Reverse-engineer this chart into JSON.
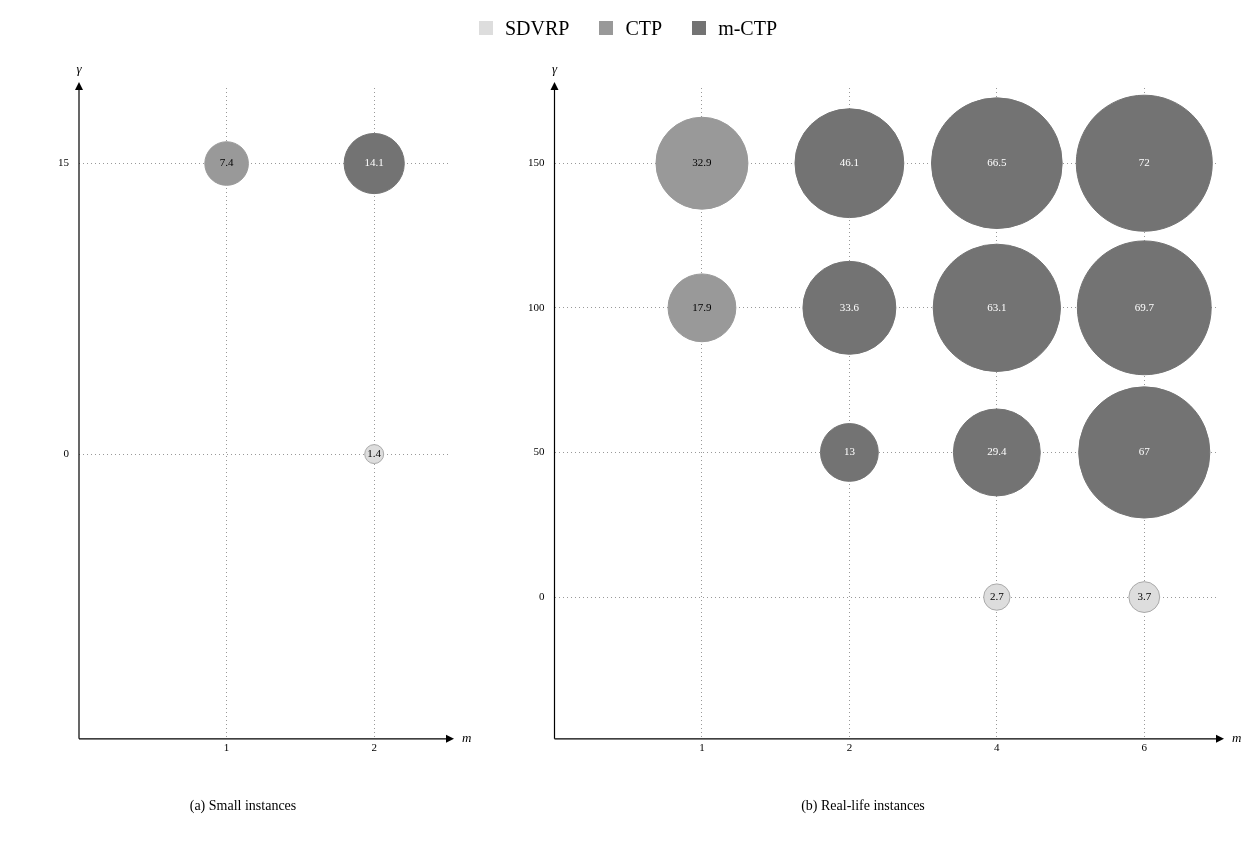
{
  "chart_data": [
    {
      "type": "bubble",
      "title": "(a) Small instances",
      "xlabel": "m",
      "ylabel": "γ",
      "categories": [
        "1",
        "2"
      ],
      "ylim": [
        -14.7,
        18.9
      ],
      "yticks": [
        0,
        15
      ],
      "grid": true,
      "legend": "top",
      "series": [
        {
          "name": "SDVRP",
          "color": "#dddddd",
          "x": [
            "2"
          ],
          "values": [
            0
          ],
          "sizes": [
            1.4
          ],
          "value_labels": [
            "1.4"
          ]
        },
        {
          "name": "CTP",
          "color": "#999999",
          "x": [
            "1"
          ],
          "values": [
            15
          ],
          "sizes": [
            7.4
          ],
          "value_labels": [
            "7.4"
          ]
        },
        {
          "name": "m-CTP",
          "color": "#737373",
          "x": [
            "2"
          ],
          "values": [
            15
          ],
          "sizes": [
            14.1
          ],
          "value_labels": [
            "14.1"
          ]
        }
      ]
    },
    {
      "type": "bubble",
      "title": "(b) Real-life instances",
      "xlabel": "m",
      "ylabel": "γ",
      "categories": [
        "1",
        "2",
        "4",
        "6"
      ],
      "ylim": [
        -49,
        176
      ],
      "yticks": [
        0,
        50,
        100,
        150
      ],
      "grid": true,
      "series": [
        {
          "color": "#dddddd",
          "x": [
            "4",
            "6"
          ],
          "values": [
            0,
            0
          ],
          "sizes": [
            2.7,
            3.7
          ],
          "value_labels": [
            "2.7",
            "3.7"
          ]
        },
        {
          "color": "#999999",
          "x": [
            "1",
            "1"
          ],
          "values": [
            150,
            100
          ],
          "sizes": [
            32.9,
            17.9
          ],
          "value_labels": [
            "32.9",
            "17.9"
          ]
        },
        {
          "color": "#737373",
          "x": [
            "2",
            "4",
            "6",
            "2",
            "4",
            "6",
            "2",
            "4",
            "6"
          ],
          "values": [
            150,
            150,
            150,
            100,
            100,
            100,
            50,
            50,
            50
          ],
          "sizes": [
            46.1,
            66.5,
            72,
            33.6,
            63.1,
            69.7,
            13,
            29.4,
            67
          ],
          "value_labels": [
            "46.1",
            "66.5",
            "72",
            "33.6",
            "63.1",
            "69.7",
            "13",
            "29.4",
            "67"
          ]
        }
      ]
    }
  ]
}
